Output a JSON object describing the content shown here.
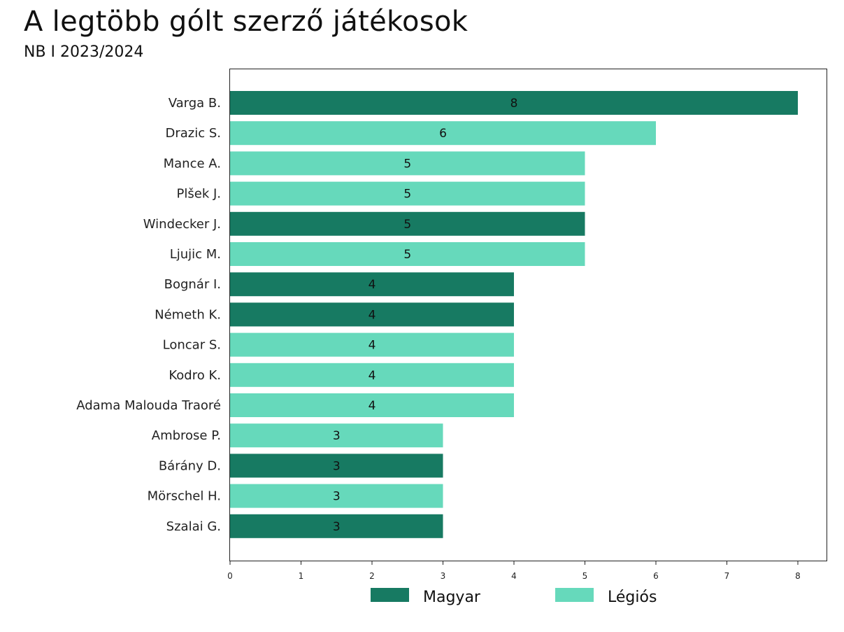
{
  "header": {
    "title": "A legtöbb gólt szerző játékosok",
    "subtitle": "NB I 2023/2024"
  },
  "chart_data": {
    "type": "bar",
    "orientation": "horizontal",
    "title": "A legtöbb gólt szerző játékosok",
    "subtitle": "NB I 2023/2024",
    "xlabel": "",
    "ylabel": "",
    "xlim": [
      0,
      8.4
    ],
    "xticks": [
      0,
      1,
      2,
      3,
      4,
      5,
      6,
      7,
      8
    ],
    "grid": false,
    "legend_position": "bottom",
    "categories": [
      "Varga B.",
      "Drazic S.",
      "Mance A.",
      "Plšek J.",
      "Windecker J.",
      "Ljujic M.",
      "Bognár I.",
      "Németh K.",
      "Loncar S.",
      "Kodro K.",
      "Adama Malouda Traoré",
      "Ambrose P.",
      "Bárány D.",
      "Mörschel H.",
      "Szalai G."
    ],
    "values": [
      8,
      6,
      5,
      5,
      5,
      5,
      4,
      4,
      4,
      4,
      4,
      3,
      3,
      3,
      3
    ],
    "groups": [
      "Magyar",
      "Légiós",
      "Légiós",
      "Légiós",
      "Magyar",
      "Légiós",
      "Magyar",
      "Magyar",
      "Légiós",
      "Légiós",
      "Légiós",
      "Légiós",
      "Magyar",
      "Légiós",
      "Magyar"
    ],
    "legend": [
      {
        "name": "Magyar",
        "color": "#177a62"
      },
      {
        "name": "Légiós",
        "color": "#66d9bb"
      }
    ]
  }
}
